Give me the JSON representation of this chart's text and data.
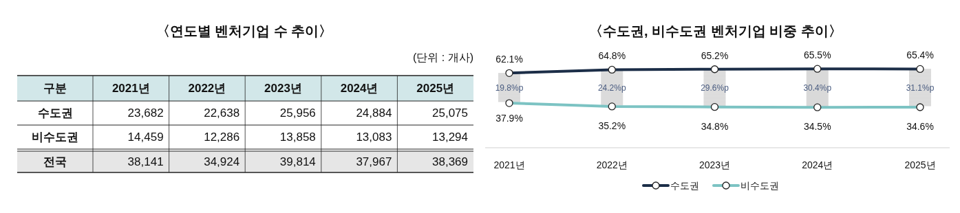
{
  "chart_data": [
    {
      "type": "heatmap",
      "title": "〈연도별 벤처기업 수 추이〉",
      "annotations": [
        "(단위 : 개사)"
      ],
      "ylabel": "구분",
      "categories": [
        "2021년",
        "2022년",
        "2023년",
        "2024년",
        "2025년"
      ],
      "y_categories": [
        "수도권",
        "비수도권",
        "전국"
      ],
      "cells": [
        [
          23682,
          22638,
          25956,
          24884,
          25075
        ],
        [
          14459,
          12286,
          13858,
          13083,
          13294
        ],
        [
          38141,
          34924,
          39814,
          37967,
          38369
        ]
      ],
      "cell_labels": [
        [
          "23,682",
          "22,638",
          "25,956",
          "24,884",
          "25,075"
        ],
        [
          "14,459",
          "12,286",
          "13,858",
          "13,083",
          "13,294"
        ],
        [
          "38,141",
          "34,924",
          "39,814",
          "37,967",
          "38,369"
        ]
      ],
      "grid": true
    },
    {
      "type": "line",
      "title": "〈수도권, 비수도권 벤처기업 비중 추이〉",
      "categories": [
        "2021년",
        "2022년",
        "2023년",
        "2024년",
        "2025년"
      ],
      "tick_labels": "x",
      "legend": "bottom",
      "marker": "circle",
      "annotations": [
        "19.8%p",
        "24.2%p",
        "29.6%p",
        "30.4%p",
        "31.1%p"
      ],
      "series": [
        {
          "name": "수도권",
          "color": "#1c2e48",
          "values": [
            62.1,
            64.8,
            65.2,
            65.5,
            65.4
          ],
          "value_labels": [
            "62.1%",
            "64.8%",
            "65.2%",
            "65.5%",
            "65.4%"
          ]
        },
        {
          "name": "비수도권",
          "color": "#7cc3c3",
          "values": [
            37.9,
            35.2,
            34.8,
            34.5,
            34.6
          ],
          "value_labels": [
            "37.9%",
            "35.2%",
            "34.8%",
            "34.5%",
            "34.6%"
          ]
        }
      ]
    }
  ]
}
